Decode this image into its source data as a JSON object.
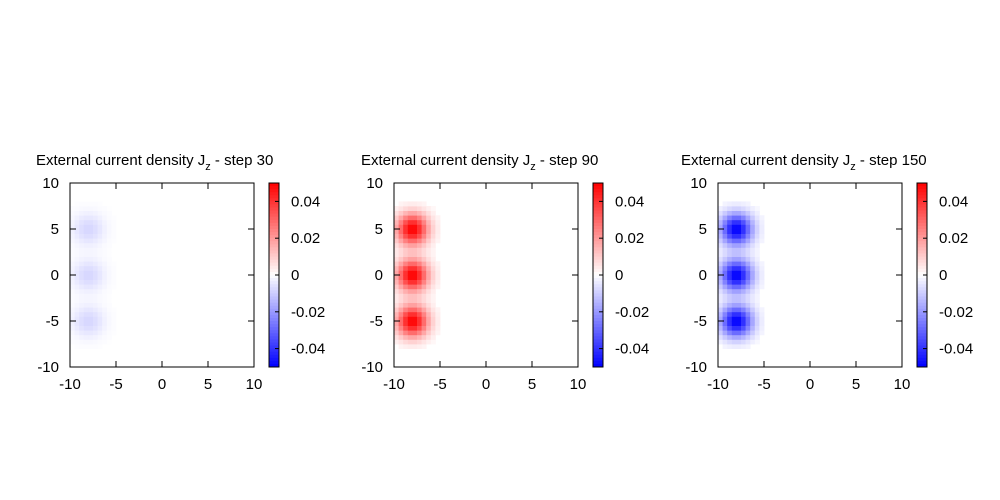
{
  "chart_data": [
    {
      "type": "heatmap",
      "title": "External current density J",
      "title_subscript": "z",
      "title_suffix": " - step 30",
      "xlim": [
        -10,
        10
      ],
      "ylim": [
        -10,
        10
      ],
      "x_ticks": [
        "-10",
        "-5",
        "0",
        "5",
        "10"
      ],
      "y_ticks": [
        "10",
        "5",
        "0",
        "-5",
        "-10"
      ],
      "colorbar": {
        "range": [
          -0.05,
          0.05
        ],
        "ticks": [
          "0.04",
          "0.02",
          "0",
          "-0.02",
          "-0.04"
        ],
        "low_color": "#0000ff",
        "mid_color": "#ffffff",
        "high_color": "#ff0000"
      },
      "sources": [
        {
          "x": -8,
          "y": 5,
          "peak": -0.008
        },
        {
          "x": -8,
          "y": 0,
          "peak": -0.008
        },
        {
          "x": -8,
          "y": -5,
          "peak": -0.008
        }
      ]
    },
    {
      "type": "heatmap",
      "title": "External current density J",
      "title_subscript": "z",
      "title_suffix": " - step 90",
      "xlim": [
        -10,
        10
      ],
      "ylim": [
        -10,
        10
      ],
      "x_ticks": [
        "-10",
        "-5",
        "0",
        "5",
        "10"
      ],
      "y_ticks": [
        "10",
        "5",
        "0",
        "-5",
        "-10"
      ],
      "colorbar": {
        "range": [
          -0.05,
          0.05
        ],
        "ticks": [
          "0.04",
          "0.02",
          "0",
          "-0.02",
          "-0.04"
        ],
        "low_color": "#0000ff",
        "mid_color": "#ffffff",
        "high_color": "#ff0000"
      },
      "sources": [
        {
          "x": -8,
          "y": 5,
          "peak": 0.05
        },
        {
          "x": -8,
          "y": 0,
          "peak": 0.05
        },
        {
          "x": -8,
          "y": -5,
          "peak": 0.05
        }
      ]
    },
    {
      "type": "heatmap",
      "title": "External current density J",
      "title_subscript": "z",
      "title_suffix": " - step 150",
      "xlim": [
        -10,
        10
      ],
      "ylim": [
        -10,
        10
      ],
      "x_ticks": [
        "-10",
        "-5",
        "0",
        "5",
        "10"
      ],
      "y_ticks": [
        "10",
        "5",
        "0",
        "-5",
        "-10"
      ],
      "colorbar": {
        "range": [
          -0.05,
          0.05
        ],
        "ticks": [
          "0.04",
          "0.02",
          "0",
          "-0.02",
          "-0.04"
        ],
        "low_color": "#0000ff",
        "mid_color": "#ffffff",
        "high_color": "#ff0000"
      },
      "sources": [
        {
          "x": -8,
          "y": 5,
          "peak": -0.05
        },
        {
          "x": -8,
          "y": 0,
          "peak": -0.05
        },
        {
          "x": -8,
          "y": -5,
          "peak": -0.05
        }
      ]
    }
  ]
}
